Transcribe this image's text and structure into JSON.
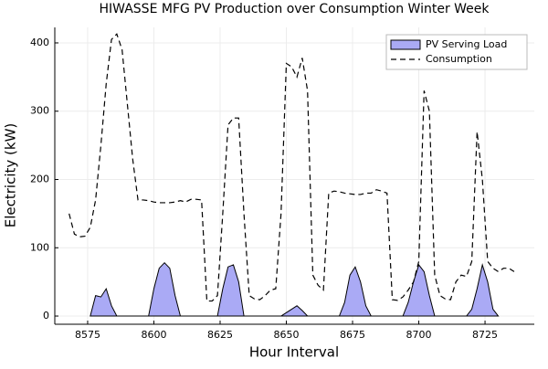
{
  "chart_data": {
    "type": "line",
    "title": "HIWASSE MFG PV Production over Consumption Winter Week",
    "xlabel": "Hour Interval",
    "ylabel": "Electricity (kW)",
    "x": [
      8568,
      8570,
      8572,
      8574,
      8576,
      8578,
      8580,
      8582,
      8584,
      8586,
      8588,
      8590,
      8592,
      8594,
      8596,
      8598,
      8600,
      8602,
      8604,
      8606,
      8608,
      8610,
      8612,
      8614,
      8616,
      8618,
      8620,
      8622,
      8624,
      8626,
      8628,
      8630,
      8632,
      8634,
      8636,
      8638,
      8640,
      8642,
      8644,
      8646,
      8648,
      8650,
      8652,
      8654,
      8656,
      8658,
      8660,
      8662,
      8664,
      8666,
      8668,
      8670,
      8672,
      8674,
      8676,
      8678,
      8680,
      8682,
      8684,
      8686,
      8688,
      8690,
      8692,
      8694,
      8696,
      8698,
      8700,
      8702,
      8704,
      8706,
      8708,
      8710,
      8712,
      8714,
      8716,
      8718,
      8720,
      8722,
      8724,
      8726,
      8728,
      8730,
      8732,
      8734,
      8736
    ],
    "series": [
      {
        "name": "PV Serving Load",
        "kind": "area",
        "color": "#aaaaf5",
        "values": [
          null,
          null,
          null,
          null,
          0,
          30,
          28,
          40,
          15,
          0,
          0,
          0,
          0,
          0,
          0,
          0,
          40,
          70,
          78,
          70,
          30,
          0,
          0,
          0,
          0,
          0,
          0,
          0,
          0,
          40,
          72,
          75,
          50,
          0,
          0,
          0,
          0,
          0,
          0,
          0,
          0,
          5,
          10,
          15,
          8,
          0,
          0,
          0,
          0,
          0,
          0,
          0,
          20,
          60,
          72,
          50,
          15,
          0,
          0,
          0,
          0,
          0,
          0,
          0,
          20,
          50,
          75,
          65,
          30,
          0,
          0,
          0,
          0,
          0,
          0,
          0,
          10,
          40,
          75,
          50,
          10,
          0,
          null,
          null,
          null
        ]
      },
      {
        "name": "Consumption",
        "kind": "dashed",
        "color": "#000000",
        "values": [
          150,
          120,
          116,
          117,
          130,
          170,
          250,
          340,
          405,
          413,
          390,
          310,
          230,
          170,
          170,
          169,
          167,
          166,
          166,
          166,
          167,
          169,
          167,
          171,
          171,
          170,
          22,
          22,
          30,
          150,
          280,
          290,
          290,
          150,
          30,
          25,
          24,
          30,
          38,
          40,
          150,
          370,
          365,
          350,
          378,
          330,
          60,
          45,
          38,
          180,
          183,
          182,
          180,
          179,
          178,
          178,
          180,
          180,
          185,
          183,
          180,
          24,
          23,
          28,
          38,
          50,
          80,
          330,
          300,
          60,
          30,
          25,
          24,
          50,
          60,
          58,
          80,
          270,
          200,
          80,
          70,
          65,
          70,
          70,
          65
        ]
      }
    ],
    "xlim": [
      8562.6,
      8743.6
    ],
    "ylim": [
      -12,
      422.7
    ],
    "xticks": [
      8575,
      8600,
      8625,
      8650,
      8675,
      8700,
      8725
    ],
    "yticks": [
      0,
      100,
      200,
      300,
      400
    ],
    "grid": true,
    "legend": "top-right"
  }
}
